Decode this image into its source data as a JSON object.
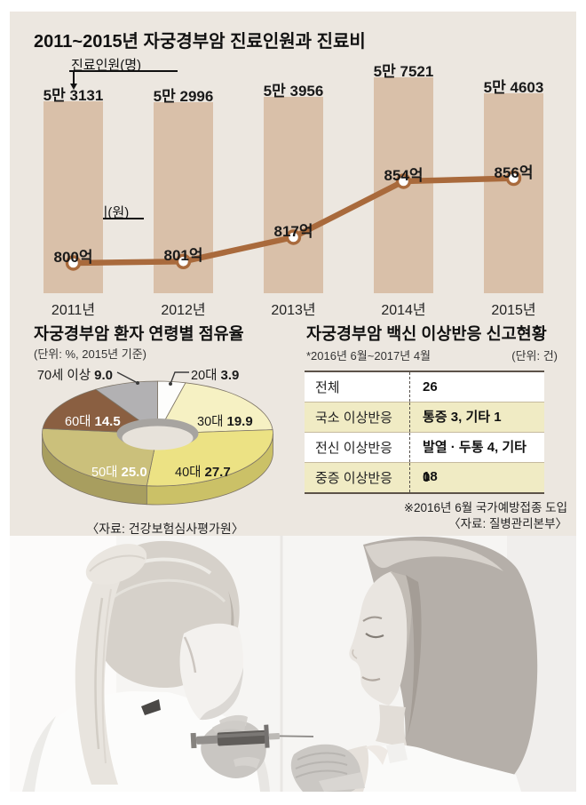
{
  "chart_data": [
    {
      "type": "bar-line-combo",
      "title": "2011~2015년 자궁경부암 진료인원과 진료비",
      "categories": [
        "2011년",
        "2012년",
        "2013년",
        "2014년",
        "2015년"
      ],
      "bar_series": {
        "name": "진료인원(명)",
        "labels": [
          "5만 3131",
          "5만 2996",
          "5만 3956",
          "5만 7521",
          "5만 4603"
        ],
        "values": [
          53131,
          52996,
          53956,
          57521,
          54603
        ],
        "color": "#d9c0a9"
      },
      "line_series": {
        "name": "진료비(원)",
        "labels": [
          "800억",
          "801억",
          "817억",
          "854억",
          "856억"
        ],
        "values": [
          800,
          801,
          817,
          854,
          856
        ],
        "color": "#a96a3c"
      }
    },
    {
      "type": "pie",
      "title": "자궁경부암 환자 연령별 점유율",
      "subtitle": "(단위: %, 2015년 기준)",
      "slices": [
        {
          "label": "20대",
          "display": "3.9",
          "value": 3.9,
          "color": "#fdfdfc",
          "dark": "#d8d8d4"
        },
        {
          "label": "30대",
          "display": "19.9",
          "value": 19.9,
          "color": "#f6f1c3",
          "dark": "#d5cf96"
        },
        {
          "label": "40대",
          "display": "27.7",
          "value": 27.7,
          "color": "#ece284",
          "dark": "#cbc167"
        },
        {
          "label": "50대",
          "display": "25.0",
          "value": 25.0,
          "color": "#cbc07b",
          "dark": "#a89e5f"
        },
        {
          "label": "60대",
          "display": "14.5",
          "value": 14.5,
          "color": "#8a5f41",
          "dark": "#6e4a31"
        },
        {
          "label": "70세 이상",
          "display": "9.0",
          "value": 9.0,
          "color": "#b2b1b3",
          "dark": "#908f91"
        }
      ],
      "source": "〈자료: 건강보험심사평가원〉"
    },
    {
      "type": "table",
      "title": "자궁경부암 백신 이상반응 신고현황",
      "subtitle": "*2016년 6월~2017년 4월",
      "unit": "(단위: 건)",
      "rows": [
        {
          "label": "전체",
          "value": "26"
        },
        {
          "label": "국소 이상반응",
          "value": "통증 3, 기타 1"
        },
        {
          "label": "전신 이상반응",
          "value": "발열 · 두통 4, 기타 18"
        },
        {
          "label": "중증 이상반응",
          "value": "0"
        }
      ],
      "notes": [
        "※2016년 6월 국가예방접종 도입",
        "〈자료: 질병관리본부〉"
      ]
    }
  ],
  "colors": {
    "panel_bg": "#ece7e0",
    "bar": "#d9c0a9",
    "line": "#a96a3c",
    "table_row_alt": "#f0ebc4"
  }
}
